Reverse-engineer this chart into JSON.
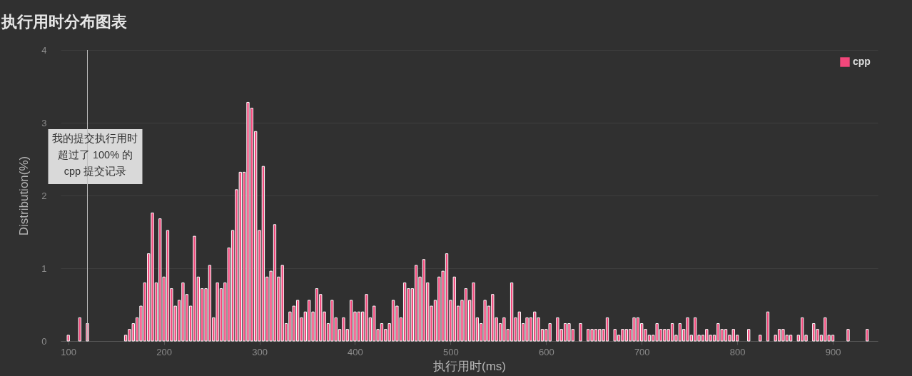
{
  "chart_data": {
    "type": "bar",
    "title": "执行用时分布图表",
    "xlabel": "执行用时(ms)",
    "ylabel": "Distribution(%)",
    "x": [
      100,
      112,
      120,
      160,
      164,
      168,
      172,
      176,
      180,
      184,
      188,
      192,
      196,
      200,
      204,
      208,
      212,
      216,
      220,
      224,
      228,
      232,
      236,
      240,
      244,
      248,
      252,
      256,
      260,
      264,
      268,
      272,
      276,
      280,
      284,
      288,
      292,
      296,
      300,
      304,
      308,
      312,
      316,
      320,
      324,
      328,
      332,
      336,
      340,
      344,
      348,
      352,
      356,
      360,
      364,
      368,
      372,
      376,
      380,
      384,
      388,
      392,
      396,
      400,
      404,
      408,
      412,
      416,
      420,
      424,
      428,
      432,
      436,
      440,
      444,
      448,
      452,
      456,
      460,
      464,
      468,
      472,
      476,
      480,
      484,
      488,
      492,
      496,
      500,
      504,
      508,
      512,
      516,
      520,
      524,
      528,
      532,
      536,
      540,
      544,
      548,
      552,
      556,
      560,
      564,
      568,
      572,
      576,
      580,
      584,
      588,
      592,
      596,
      600,
      604,
      612,
      616,
      620,
      624,
      628,
      636,
      644,
      648,
      652,
      656,
      660,
      664,
      672,
      676,
      680,
      684,
      688,
      692,
      696,
      700,
      704,
      708,
      712,
      716,
      720,
      724,
      728,
      732,
      736,
      740,
      744,
      748,
      752,
      756,
      760,
      764,
      768,
      772,
      776,
      780,
      784,
      788,
      792,
      796,
      800,
      812,
      824,
      832,
      840,
      844,
      848,
      852,
      856,
      864,
      868,
      872,
      880,
      884,
      888,
      892,
      896,
      900,
      916,
      936
    ],
    "series": [
      {
        "name": "cpp",
        "color": "#f2477b",
        "values": [
          0.08,
          0.32,
          0.24,
          0.08,
          0.16,
          0.24,
          0.32,
          0.48,
          0.8,
          1.2,
          1.76,
          0.8,
          1.68,
          0.88,
          1.52,
          0.72,
          0.48,
          0.56,
          0.8,
          0.64,
          0.48,
          1.44,
          0.88,
          0.72,
          0.72,
          1.04,
          0.32,
          0.8,
          0.72,
          0.8,
          1.28,
          1.52,
          2.08,
          2.32,
          2.32,
          3.28,
          3.2,
          2.88,
          1.52,
          2.4,
          0.88,
          0.96,
          1.6,
          0.88,
          1.04,
          0.24,
          0.4,
          0.48,
          0.56,
          0.32,
          0.4,
          0.56,
          0.4,
          0.72,
          0.64,
          0.4,
          0.24,
          0.56,
          0.32,
          0.16,
          0.32,
          0.16,
          0.56,
          0.4,
          0.4,
          0.4,
          0.64,
          0.32,
          0.48,
          0.16,
          0.24,
          0.16,
          0.24,
          0.56,
          0.48,
          0.32,
          0.8,
          0.72,
          0.72,
          1.04,
          0.88,
          1.12,
          0.8,
          0.48,
          0.56,
          0.88,
          0.96,
          1.2,
          0.56,
          0.88,
          0.48,
          0.56,
          0.72,
          0.56,
          0.8,
          0.32,
          0.24,
          0.56,
          0.48,
          0.64,
          0.32,
          0.24,
          0.32,
          0.16,
          0.8,
          0.32,
          0.4,
          0.24,
          0.32,
          0.32,
          0.4,
          0.32,
          0.16,
          0.16,
          0.24,
          0.32,
          0.16,
          0.24,
          0.24,
          0.16,
          0.24,
          0.16,
          0.16,
          0.16,
          0.16,
          0.16,
          0.32,
          0.16,
          0.08,
          0.16,
          0.16,
          0.16,
          0.32,
          0.32,
          0.24,
          0.16,
          0.08,
          0.08,
          0.24,
          0.16,
          0.16,
          0.16,
          0.24,
          0.08,
          0.24,
          0.16,
          0.32,
          0.08,
          0.32,
          0.08,
          0.08,
          0.16,
          0.08,
          0.08,
          0.24,
          0.16,
          0.16,
          0.08,
          0.16,
          0.08,
          0.16,
          0.08,
          0.4,
          0.08,
          0.16,
          0.16,
          0.08,
          0.08,
          0.08,
          0.32,
          0.08,
          0.24,
          0.16,
          0.08,
          0.32,
          0.08,
          0.08,
          0.16,
          0.16
        ]
      }
    ],
    "xlim": [
      92,
      947
    ],
    "xticks": [
      100,
      200,
      300,
      400,
      500,
      600,
      700,
      800,
      900
    ],
    "ylim": [
      0,
      4
    ],
    "yticks": [
      0,
      1,
      2,
      3,
      4
    ],
    "grid": "y",
    "legend": "top right",
    "ref_lines": [
      {
        "axis": "x",
        "value": 120,
        "label": "我的提交执行用时超过了 100% 的 cpp 提交记录",
        "color": "#bfbfbf"
      }
    ]
  }
}
